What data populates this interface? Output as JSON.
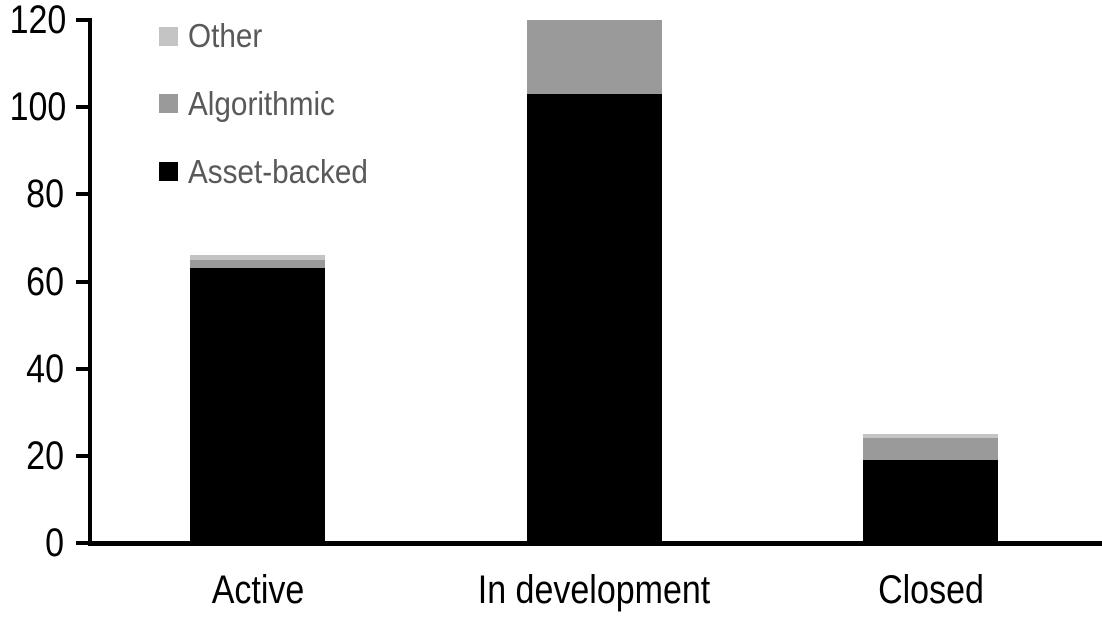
{
  "chart_data": {
    "type": "bar",
    "stacked": true,
    "title": "",
    "xlabel": "",
    "ylabel": "",
    "categories": [
      "Active",
      "In development",
      "Closed"
    ],
    "series": [
      {
        "name": "Asset-backed",
        "color": "#000000",
        "values": [
          63,
          103,
          19
        ]
      },
      {
        "name": "Algorithmic",
        "color": "#9a9a9a",
        "values": [
          2,
          17,
          5
        ]
      },
      {
        "name": "Other",
        "color": "#c4c4c4",
        "values": [
          1,
          0,
          1
        ]
      }
    ],
    "totals": [
      66,
      120,
      25
    ],
    "ylim": [
      0,
      120
    ],
    "yticks": [
      0,
      20,
      40,
      60,
      80,
      100,
      120
    ],
    "grid": false,
    "legend_position": "top-left",
    "legend_order": [
      "Other",
      "Algorithmic",
      "Asset-backed"
    ]
  },
  "colors": {
    "background": "#ffffff",
    "axis": "#000000",
    "axis_label_text": "#000000",
    "legend_text": "#595959"
  }
}
